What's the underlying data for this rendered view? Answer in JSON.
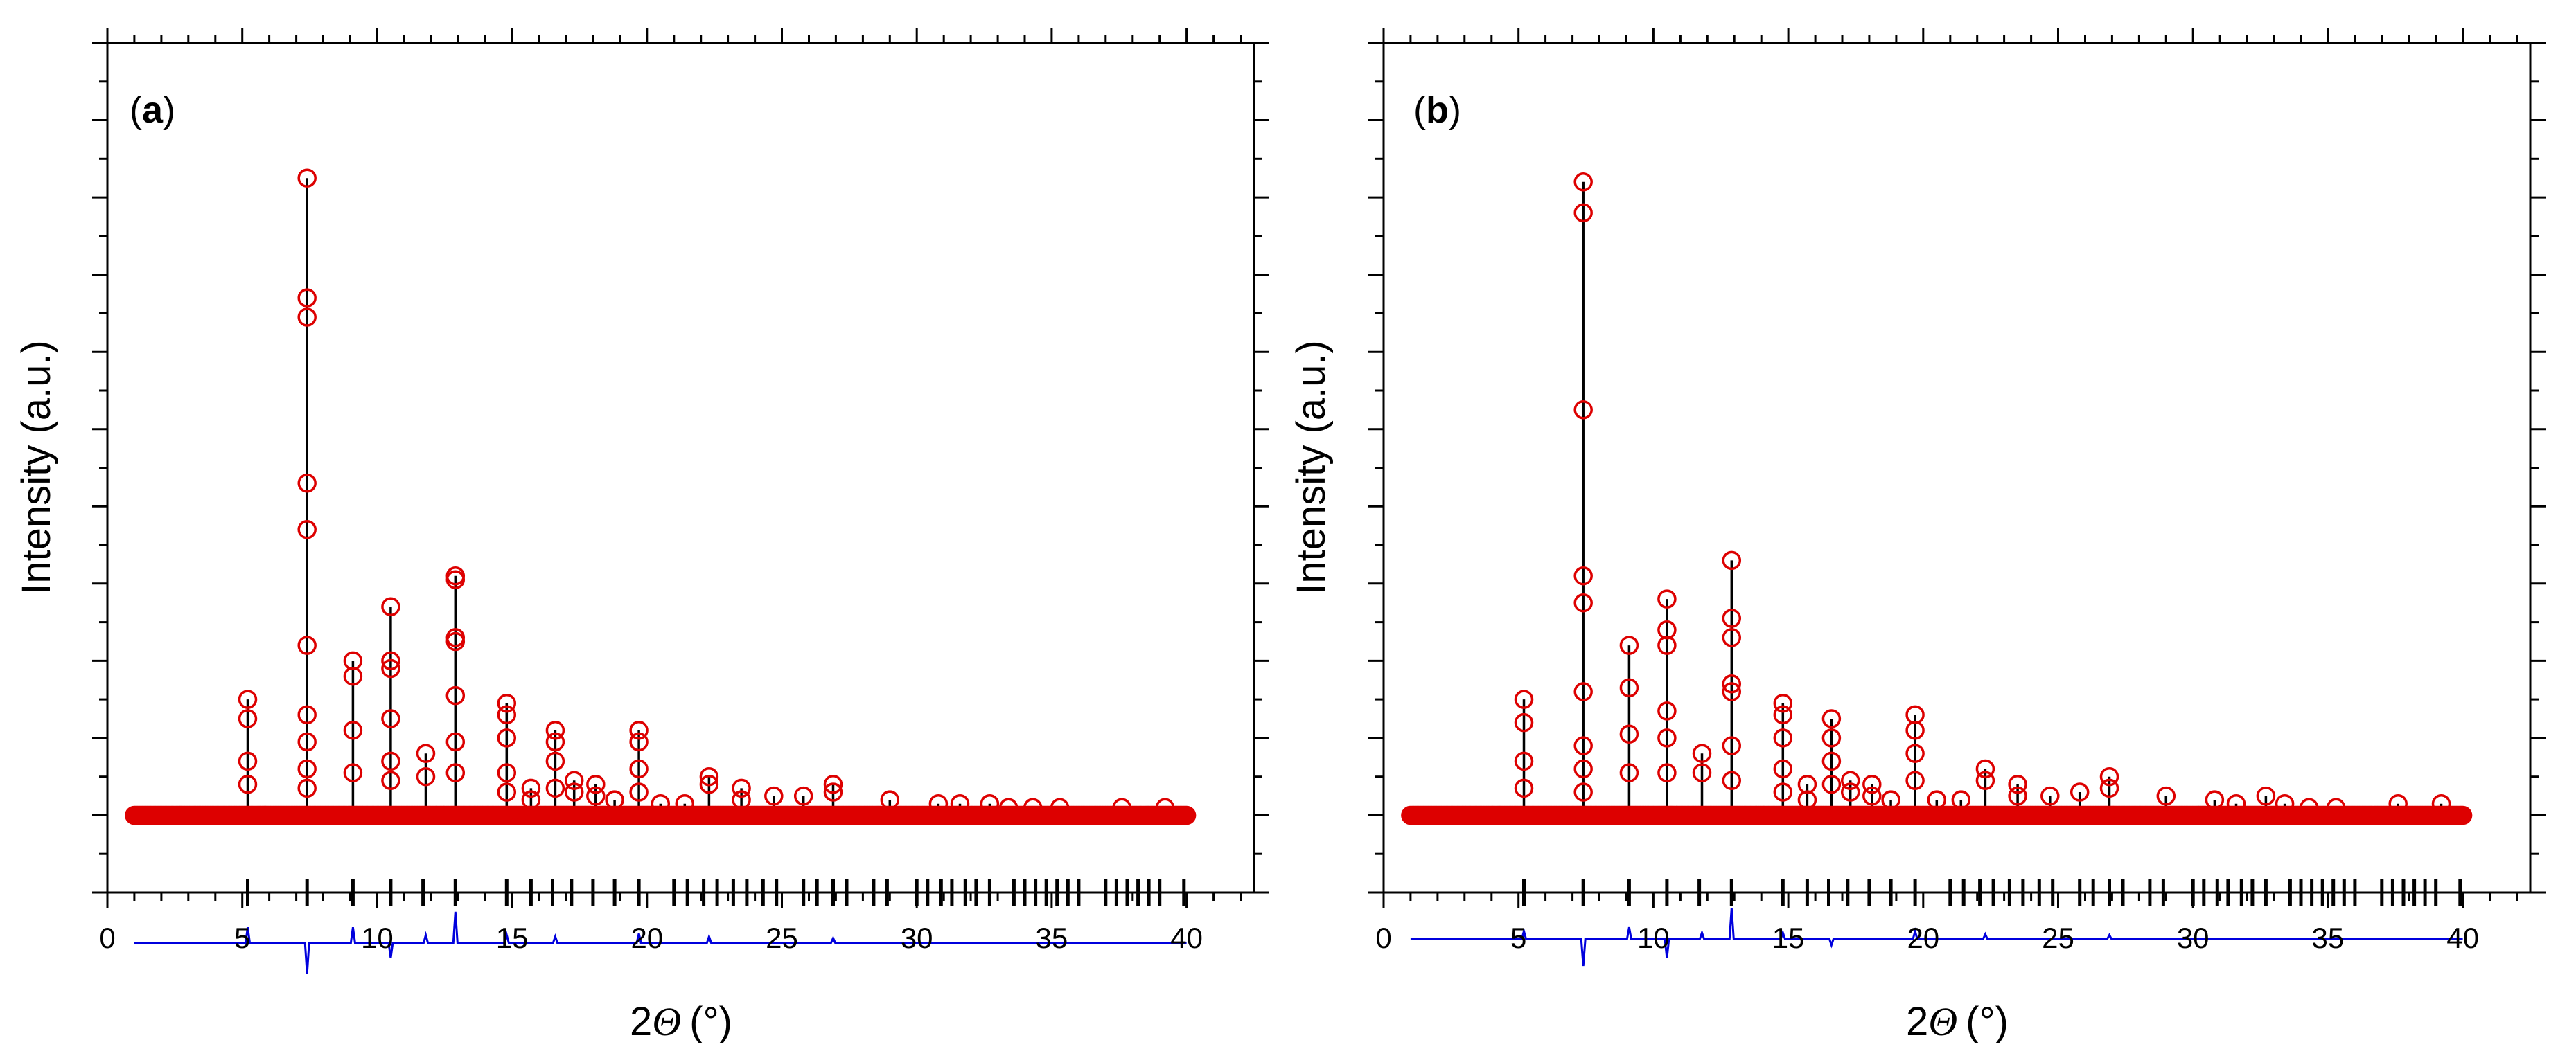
{
  "figure": {
    "y_axis_label": "Intensity (a.u.)",
    "x_axis_label_prefix": "2",
    "x_axis_symbol": "Θ",
    "x_axis_unit": "(°)"
  },
  "chart_data": [
    {
      "type": "scatter",
      "panel": "a",
      "tag_open": "(",
      "tag_letter": "a",
      "tag_close": ")",
      "xlabel": "2Θ (°)",
      "ylabel": "Intensity (a.u.)",
      "xlim": [
        0,
        42.5
      ],
      "ylim": [
        -10,
        100
      ],
      "xticks": [
        0,
        5,
        10,
        15,
        20,
        25,
        30,
        35,
        40
      ],
      "xtick_labels": [
        "0",
        "5",
        "10",
        "15",
        "20",
        "25",
        "30",
        "35",
        "40"
      ],
      "yticks": [
        -10,
        0,
        10,
        20,
        30,
        40,
        50,
        60,
        70,
        80,
        90,
        100
      ],
      "baseline": 0,
      "range": [
        1,
        40
      ],
      "series": [
        {
          "name": "observed",
          "color": "#dd0000",
          "marker": "open-circle"
        },
        {
          "name": "calculated",
          "color": "#000000",
          "line": "solid"
        },
        {
          "name": "Bragg positions",
          "color": "#000000",
          "marker": "vertical-bar",
          "y": -10
        },
        {
          "name": "difference",
          "color": "#0000dd",
          "line": "solid",
          "y_offset": -16.5
        }
      ],
      "peaks": [
        {
          "x": 5.2,
          "calc": 15,
          "obs": [
            15,
            12.5,
            7,
            4
          ]
        },
        {
          "x": 7.4,
          "calc": 82.5,
          "obs": [
            82.5,
            67,
            64.5,
            43,
            37,
            22,
            13,
            9.5,
            6,
            3.5
          ]
        },
        {
          "x": 9.1,
          "calc": 20,
          "obs": [
            20,
            18,
            11,
            5.5
          ]
        },
        {
          "x": 10.5,
          "calc": 27,
          "obs": [
            27,
            20,
            19,
            12.5,
            7,
            4.5
          ]
        },
        {
          "x": 11.8,
          "calc": 8,
          "obs": [
            8,
            5
          ]
        },
        {
          "x": 12.9,
          "calc": 31,
          "obs": [
            31,
            30.5,
            23,
            22.5,
            15.5,
            9.5,
            5.5
          ]
        },
        {
          "x": 14.8,
          "calc": 14.5,
          "obs": [
            14.5,
            13,
            10,
            5.5,
            3
          ]
        },
        {
          "x": 15.7,
          "calc": 3.5,
          "obs": [
            3.5,
            2
          ]
        },
        {
          "x": 16.6,
          "calc": 11,
          "obs": [
            11,
            9.5,
            7,
            3.5
          ]
        },
        {
          "x": 17.3,
          "calc": 4.5,
          "obs": [
            4.5,
            3
          ]
        },
        {
          "x": 18.1,
          "calc": 4,
          "obs": [
            4,
            2.5
          ]
        },
        {
          "x": 18.8,
          "calc": 2,
          "obs": [
            2
          ]
        },
        {
          "x": 19.7,
          "calc": 11,
          "obs": [
            11,
            9.5,
            6,
            3
          ]
        },
        {
          "x": 20.5,
          "calc": 1.5,
          "obs": [
            1.5
          ]
        },
        {
          "x": 21.4,
          "calc": 1.5,
          "obs": [
            1.5
          ]
        },
        {
          "x": 22.3,
          "calc": 5,
          "obs": [
            5,
            4
          ]
        },
        {
          "x": 23.5,
          "calc": 3.5,
          "obs": [
            3.5,
            2
          ]
        },
        {
          "x": 24.7,
          "calc": 2.5,
          "obs": [
            2.5
          ]
        },
        {
          "x": 25.8,
          "calc": 2.5,
          "obs": [
            2.5
          ]
        },
        {
          "x": 26.9,
          "calc": 4,
          "obs": [
            4,
            3
          ]
        },
        {
          "x": 29.0,
          "calc": 2,
          "obs": [
            2
          ]
        },
        {
          "x": 30.8,
          "calc": 1.5,
          "obs": [
            1.5
          ]
        },
        {
          "x": 31.6,
          "calc": 1.5,
          "obs": [
            1.5
          ]
        },
        {
          "x": 32.7,
          "calc": 1.5,
          "obs": [
            1.5
          ]
        },
        {
          "x": 33.4,
          "calc": 1,
          "obs": [
            1
          ]
        },
        {
          "x": 34.3,
          "calc": 1,
          "obs": [
            1
          ]
        },
        {
          "x": 35.3,
          "calc": 1,
          "obs": [
            1
          ]
        },
        {
          "x": 37.6,
          "calc": 1,
          "obs": [
            1
          ]
        },
        {
          "x": 39.2,
          "calc": 1,
          "obs": [
            1
          ]
        }
      ],
      "bragg_positions": [
        5.2,
        7.4,
        9.1,
        10.5,
        11.7,
        12.9,
        14.8,
        15.7,
        16.5,
        17.2,
        18.0,
        18.8,
        19.7,
        21.0,
        21.5,
        22.1,
        22.6,
        23.2,
        23.7,
        24.3,
        24.8,
        25.8,
        26.3,
        26.9,
        27.4,
        28.4,
        28.9,
        30.0,
        30.4,
        30.9,
        31.3,
        31.8,
        32.2,
        32.7,
        33.6,
        34.0,
        34.4,
        34.8,
        35.2,
        35.6,
        36.0,
        37.0,
        37.4,
        37.8,
        38.2,
        38.6,
        39.0,
        39.9
      ],
      "difference_spikes": [
        {
          "x": 5.2,
          "dy": 2
        },
        {
          "x": 7.4,
          "dy": -4
        },
        {
          "x": 9.1,
          "dy": 2
        },
        {
          "x": 10.5,
          "dy": -2
        },
        {
          "x": 11.8,
          "dy": 1
        },
        {
          "x": 12.9,
          "dy": 4
        },
        {
          "x": 14.8,
          "dy": 1
        },
        {
          "x": 16.6,
          "dy": 0.8
        },
        {
          "x": 19.7,
          "dy": 1.2
        },
        {
          "x": 22.3,
          "dy": 0.8
        },
        {
          "x": 26.9,
          "dy": 0.6
        }
      ]
    },
    {
      "type": "scatter",
      "panel": "b",
      "tag_open": "(",
      "tag_letter": "b",
      "tag_close": ")",
      "xlabel": "2Θ (°)",
      "ylabel": "Intensity (a.u.)",
      "xlim": [
        0,
        42.5
      ],
      "ylim": [
        -10,
        100
      ],
      "xticks": [
        0,
        5,
        10,
        15,
        20,
        25,
        30,
        35,
        40
      ],
      "xtick_labels": [
        "0",
        "5",
        "10",
        "15",
        "20",
        "25",
        "30",
        "35",
        "40"
      ],
      "yticks": [
        -10,
        0,
        10,
        20,
        30,
        40,
        50,
        60,
        70,
        80,
        90,
        100
      ],
      "baseline": 0,
      "range": [
        1,
        40
      ],
      "series": [
        {
          "name": "observed",
          "color": "#dd0000",
          "marker": "open-circle"
        },
        {
          "name": "calculated",
          "color": "#000000",
          "line": "solid"
        },
        {
          "name": "Bragg positions",
          "color": "#000000",
          "marker": "vertical-bar",
          "y": -10
        },
        {
          "name": "difference",
          "color": "#0000dd",
          "line": "solid",
          "y_offset": -16
        }
      ],
      "peaks": [
        {
          "x": 5.2,
          "calc": 15,
          "obs": [
            15,
            12,
            7,
            3.5
          ]
        },
        {
          "x": 7.4,
          "calc": 82,
          "obs": [
            82,
            78,
            52.5,
            31,
            27.5,
            16,
            9,
            6,
            3
          ]
        },
        {
          "x": 9.1,
          "calc": 22,
          "obs": [
            22,
            16.5,
            10.5,
            5.5
          ]
        },
        {
          "x": 10.5,
          "calc": 28,
          "obs": [
            28,
            24,
            22,
            13.5,
            10,
            5.5
          ]
        },
        {
          "x": 11.8,
          "calc": 8,
          "obs": [
            8,
            5.5
          ]
        },
        {
          "x": 12.9,
          "calc": 33,
          "obs": [
            33,
            25.5,
            23,
            17,
            16,
            9,
            4.5
          ]
        },
        {
          "x": 14.8,
          "calc": 14.5,
          "obs": [
            14.5,
            13,
            10,
            6,
            3
          ]
        },
        {
          "x": 15.7,
          "calc": 4,
          "obs": [
            4,
            2
          ]
        },
        {
          "x": 16.6,
          "calc": 12.5,
          "obs": [
            12.5,
            10,
            7,
            4
          ]
        },
        {
          "x": 17.3,
          "calc": 4.5,
          "obs": [
            4.5,
            3
          ]
        },
        {
          "x": 18.1,
          "calc": 4,
          "obs": [
            4,
            2.5
          ]
        },
        {
          "x": 18.8,
          "calc": 2,
          "obs": [
            2
          ]
        },
        {
          "x": 19.7,
          "calc": 13,
          "obs": [
            13,
            11,
            8,
            4.5
          ]
        },
        {
          "x": 20.5,
          "calc": 2,
          "obs": [
            2
          ]
        },
        {
          "x": 21.4,
          "calc": 2,
          "obs": [
            2
          ]
        },
        {
          "x": 22.3,
          "calc": 6,
          "obs": [
            6,
            4.5
          ]
        },
        {
          "x": 23.5,
          "calc": 4,
          "obs": [
            4,
            2.5
          ]
        },
        {
          "x": 24.7,
          "calc": 2.5,
          "obs": [
            2.5
          ]
        },
        {
          "x": 25.8,
          "calc": 3,
          "obs": [
            3
          ]
        },
        {
          "x": 26.9,
          "calc": 5,
          "obs": [
            5,
            3.5
          ]
        },
        {
          "x": 29.0,
          "calc": 2.5,
          "obs": [
            2.5
          ]
        },
        {
          "x": 30.8,
          "calc": 2,
          "obs": [
            2
          ]
        },
        {
          "x": 31.6,
          "calc": 1.5,
          "obs": [
            1.5
          ]
        },
        {
          "x": 32.7,
          "calc": 2.5,
          "obs": [
            2.5
          ]
        },
        {
          "x": 33.4,
          "calc": 1.5,
          "obs": [
            1.5
          ]
        },
        {
          "x": 34.3,
          "calc": 1,
          "obs": [
            1
          ]
        },
        {
          "x": 35.3,
          "calc": 1,
          "obs": [
            1
          ]
        },
        {
          "x": 37.6,
          "calc": 1.5,
          "obs": [
            1.5
          ]
        },
        {
          "x": 39.2,
          "calc": 1.5,
          "obs": [
            1.5
          ]
        }
      ],
      "bragg_positions": [
        5.2,
        7.4,
        9.1,
        10.5,
        11.7,
        12.9,
        14.8,
        15.7,
        16.5,
        17.2,
        18.0,
        18.8,
        19.7,
        21.0,
        21.5,
        22.1,
        22.6,
        23.2,
        23.7,
        24.3,
        24.8,
        25.8,
        26.3,
        26.9,
        27.4,
        28.4,
        28.9,
        30.0,
        30.4,
        30.9,
        31.3,
        31.8,
        32.2,
        32.7,
        33.6,
        34.0,
        34.4,
        34.8,
        35.2,
        35.6,
        36.0,
        37.0,
        37.4,
        37.8,
        38.2,
        38.6,
        39.0,
        39.9
      ],
      "difference_spikes": [
        {
          "x": 5.2,
          "dy": 1
        },
        {
          "x": 7.4,
          "dy": -3.5
        },
        {
          "x": 9.1,
          "dy": 1.5
        },
        {
          "x": 10.5,
          "dy": -2.5
        },
        {
          "x": 11.8,
          "dy": 0.8
        },
        {
          "x": 12.9,
          "dy": 4
        },
        {
          "x": 14.8,
          "dy": 0.8
        },
        {
          "x": 16.6,
          "dy": -0.8
        },
        {
          "x": 19.7,
          "dy": 1
        },
        {
          "x": 22.3,
          "dy": 0.6
        },
        {
          "x": 26.9,
          "dy": 0.5
        }
      ]
    }
  ]
}
